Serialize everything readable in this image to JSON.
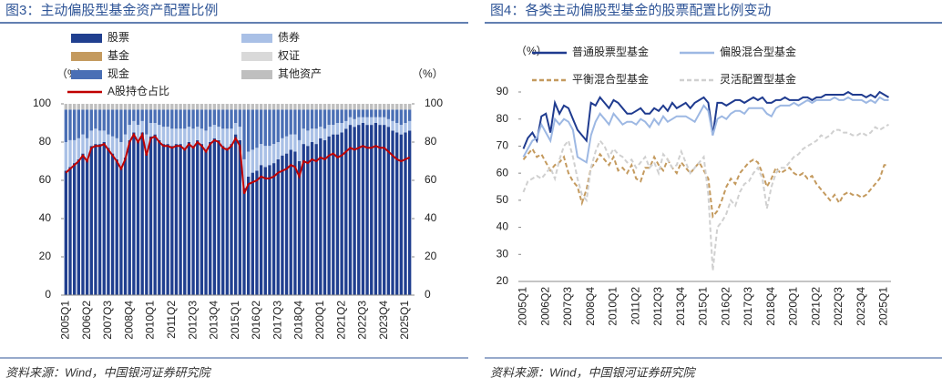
{
  "chart_data": [
    {
      "type": "bar",
      "stacked": true,
      "title": "图3：主动偏股型基金资产配置比例",
      "source": "资料来源：Wind，中国银河证券研究院",
      "y_unit": "（%）",
      "y2_unit": "（%）",
      "categories": [
        "2005Q1",
        null,
        null,
        null,
        null,
        "2006Q2",
        null,
        null,
        null,
        null,
        "2007Q3",
        null,
        null,
        null,
        null,
        "2008Q4",
        null,
        null,
        null,
        null,
        "2010Q1",
        null,
        null,
        null,
        null,
        "2011Q2",
        null,
        null,
        null,
        null,
        "2012Q3",
        null,
        null,
        null,
        null,
        "2013Q4",
        null,
        null,
        null,
        null,
        "2015Q1",
        null,
        null,
        null,
        null,
        "2016Q2",
        null,
        null,
        null,
        null,
        "2017Q3",
        null,
        null,
        null,
        null,
        "2018Q4",
        null,
        null,
        null,
        null,
        "2020Q1",
        null,
        null,
        null,
        null,
        "2021Q2",
        null,
        null,
        null,
        null,
        "2022Q3",
        null,
        null,
        null,
        null,
        "2023Q4",
        null,
        null,
        null,
        null,
        "2025Q1",
        null
      ],
      "ylim": [
        0,
        100
      ],
      "yticks": [
        0,
        20,
        40,
        60,
        80,
        100
      ],
      "y2lim": [
        0,
        100
      ],
      "y2ticks": [
        0,
        20,
        40,
        60,
        80,
        100
      ],
      "series": [
        {
          "name": "股票",
          "color": "#203f8f",
          "values": [
            65,
            67,
            69,
            71,
            74,
            71,
            78,
            79,
            79,
            80,
            77,
            74,
            71,
            67,
            72,
            81,
            85,
            81,
            85,
            74,
            83,
            84,
            81,
            79,
            79,
            78,
            79,
            79,
            77,
            80,
            78,
            81,
            79,
            76,
            80,
            82,
            81,
            78,
            77,
            79,
            84,
            81,
            56,
            62,
            64,
            65,
            68,
            67,
            68,
            69,
            71,
            73,
            74,
            76,
            75,
            70,
            79,
            78,
            80,
            79,
            82,
            81,
            83,
            84,
            84,
            85,
            87,
            89,
            88,
            89,
            90,
            89,
            89,
            90,
            89,
            89,
            88,
            86,
            85,
            84,
            85,
            86
          ]
        },
        {
          "name": "债券",
          "color": "#a9c0e6",
          "values": [
            15,
            14,
            12,
            11,
            10,
            11,
            8,
            8,
            7,
            6,
            7,
            9,
            11,
            13,
            12,
            8,
            6,
            8,
            6,
            10,
            7,
            6,
            8,
            9,
            9,
            9,
            8,
            8,
            10,
            8,
            9,
            7,
            8,
            10,
            8,
            7,
            7,
            9,
            10,
            8,
            6,
            7,
            15,
            13,
            12,
            12,
            11,
            11,
            10,
            10,
            9,
            9,
            9,
            8,
            9,
            11,
            8,
            8,
            7,
            8,
            6,
            6,
            6,
            5,
            6,
            5,
            4,
            4,
            4,
            4,
            3,
            4,
            4,
            3,
            4,
            4,
            4,
            5,
            5,
            5,
            5,
            5
          ]
        },
        {
          "name": "基金",
          "color": "#c49a5e",
          "values": [
            0,
            0,
            0,
            0,
            0,
            0,
            0,
            0,
            0,
            0,
            0,
            0,
            0,
            0,
            0,
            0,
            0,
            0,
            0,
            0,
            0,
            0,
            0,
            0,
            0,
            0,
            0,
            0,
            0,
            0,
            0,
            0,
            0,
            0,
            0,
            0,
            0,
            0,
            0,
            0,
            0,
            0,
            0,
            0,
            0,
            0,
            0,
            0,
            0,
            0,
            0,
            0,
            0,
            0,
            0,
            0,
            0,
            0,
            0,
            0,
            0,
            0,
            0,
            0,
            0,
            0,
            0,
            0,
            0,
            0,
            0,
            0,
            0,
            0,
            0,
            0,
            0,
            0,
            0,
            0,
            0,
            0
          ]
        },
        {
          "name": "权证",
          "color": "#d9d9d9",
          "values": [
            0,
            0,
            0,
            0,
            0,
            0,
            0,
            0,
            0,
            0,
            0,
            0,
            0,
            0,
            0,
            0,
            0,
            0,
            0,
            0,
            0,
            0,
            0,
            0,
            0,
            0,
            0,
            0,
            0,
            0,
            0,
            0,
            0,
            0,
            0,
            0,
            0,
            0,
            0,
            0,
            0,
            0,
            0,
            0,
            0,
            0,
            0,
            0,
            0,
            0,
            0,
            0,
            0,
            0,
            0,
            0,
            0,
            0,
            0,
            0,
            0,
            0,
            0,
            0,
            0,
            0,
            0,
            0,
            0,
            0,
            0,
            0,
            0,
            0,
            0,
            0,
            0,
            0,
            0,
            0,
            0,
            0
          ]
        },
        {
          "name": "现金",
          "color": "#4a6fb5",
          "values": [
            17,
            16,
            16,
            15,
            13,
            15,
            11,
            10,
            11,
            11,
            13,
            14,
            15,
            17,
            13,
            8,
            6,
            8,
            6,
            13,
            7,
            7,
            8,
            9,
            9,
            10,
            10,
            10,
            10,
            9,
            10,
            9,
            10,
            11,
            9,
            8,
            9,
            10,
            10,
            10,
            7,
            9,
            26,
            22,
            21,
            20,
            18,
            19,
            19,
            18,
            17,
            15,
            14,
            13,
            13,
            16,
            10,
            11,
            10,
            10,
            9,
            10,
            8,
            8,
            7,
            7,
            6,
            4,
            5,
            4,
            4,
            4,
            4,
            4,
            4,
            4,
            5,
            6,
            7,
            8,
            7,
            6
          ]
        },
        {
          "name": "其他资产",
          "color": "#bfbfbf",
          "values": [
            3,
            3,
            3,
            3,
            3,
            3,
            3,
            3,
            3,
            3,
            3,
            3,
            3,
            3,
            3,
            3,
            3,
            3,
            3,
            3,
            3,
            3,
            3,
            3,
            3,
            3,
            3,
            3,
            3,
            3,
            3,
            3,
            3,
            3,
            3,
            3,
            3,
            3,
            3,
            3,
            3,
            3,
            3,
            3,
            3,
            3,
            3,
            3,
            3,
            3,
            3,
            3,
            3,
            3,
            3,
            3,
            3,
            3,
            3,
            3,
            3,
            3,
            3,
            3,
            3,
            3,
            3,
            3,
            3,
            3,
            3,
            3,
            3,
            3,
            3,
            3,
            3,
            3,
            3,
            3,
            3,
            3
          ]
        },
        {
          "name": "A股持仓占比",
          "type": "line",
          "color": "#c00000",
          "values": [
            64,
            66,
            68,
            70,
            73,
            70,
            77,
            78,
            78,
            79,
            76,
            73,
            70,
            66,
            71,
            80,
            84,
            80,
            84,
            73,
            82,
            83,
            80,
            78,
            78,
            77,
            78,
            78,
            76,
            79,
            77,
            80,
            78,
            75,
            79,
            81,
            80,
            77,
            76,
            78,
            82,
            78,
            53,
            58,
            59,
            60,
            62,
            61,
            61,
            62,
            64,
            65,
            66,
            68,
            67,
            62,
            70,
            69,
            71,
            70,
            72,
            71,
            73,
            74,
            72,
            73,
            75,
            77,
            76,
            77,
            78,
            77,
            77,
            78,
            77,
            77,
            75,
            73,
            71,
            70,
            71,
            72
          ]
        }
      ]
    },
    {
      "type": "line",
      "title": "图4：各类主动偏股型基金的股票配置比例变动",
      "source": "资料来源：Wind，中国银河证券研究院",
      "y_unit": "（%）",
      "categories": [
        "2005Q1",
        null,
        null,
        null,
        null,
        "2006Q2",
        null,
        null,
        null,
        null,
        "2007Q3",
        null,
        null,
        null,
        null,
        "2008Q4",
        null,
        null,
        null,
        null,
        "2010Q1",
        null,
        null,
        null,
        null,
        "2011Q2",
        null,
        null,
        null,
        null,
        "2012Q3",
        null,
        null,
        null,
        null,
        "2013Q4",
        null,
        null,
        null,
        null,
        "2015Q1",
        null,
        null,
        null,
        null,
        "2016Q2",
        null,
        null,
        null,
        null,
        "2017Q3",
        null,
        null,
        null,
        null,
        "2018Q4",
        null,
        null,
        null,
        null,
        "2020Q1",
        null,
        null,
        null,
        null,
        "2021Q2",
        null,
        null,
        null,
        null,
        "2022Q3",
        null,
        null,
        null,
        null,
        "2023Q4",
        null,
        null,
        null,
        null,
        "2025Q1",
        null
      ],
      "ylim": [
        20,
        90
      ],
      "yticks": [
        20,
        30,
        40,
        50,
        60,
        70,
        80,
        90
      ],
      "series": [
        {
          "name": "普通股票型基金",
          "color": "#1f3b8f",
          "dash": false,
          "values": [
            69,
            73,
            75,
            72,
            81,
            82,
            75,
            86,
            82,
            85,
            84,
            80,
            76,
            74,
            72,
            86,
            85,
            88,
            86,
            84,
            87,
            86,
            84,
            82,
            82,
            83,
            84,
            82,
            82,
            84,
            83,
            85,
            83,
            86,
            84,
            85,
            86,
            84,
            86,
            87,
            88,
            86,
            74,
            86,
            86,
            85,
            86,
            87,
            87,
            86,
            87,
            88,
            87,
            88,
            86,
            86,
            87,
            87,
            88,
            87,
            87,
            87,
            88,
            88,
            87,
            88,
            88,
            89,
            89,
            89,
            89,
            89,
            90,
            89,
            89,
            89,
            88,
            89,
            88,
            90,
            89,
            88
          ]
        },
        {
          "name": "偏股混合型基金",
          "color": "#9db8e3",
          "dash": false,
          "values": [
            66,
            69,
            72,
            73,
            78,
            75,
            72,
            80,
            78,
            80,
            79,
            76,
            66,
            65,
            64,
            74,
            79,
            82,
            80,
            78,
            82,
            80,
            78,
            79,
            79,
            78,
            80,
            79,
            77,
            80,
            78,
            81,
            79,
            80,
            81,
            81,
            81,
            80,
            79,
            82,
            85,
            83,
            74,
            80,
            81,
            80,
            82,
            83,
            83,
            82,
            84,
            84,
            84,
            84,
            82,
            81,
            84,
            85,
            85,
            85,
            86,
            85,
            86,
            87,
            86,
            87,
            87,
            87,
            87,
            88,
            87,
            87,
            88,
            87,
            87,
            87,
            86,
            87,
            86,
            88,
            87,
            87
          ]
        },
        {
          "name": "平衡混合型基金",
          "color": "#c49a5e",
          "dash": true,
          "values": [
            65,
            67,
            69,
            66,
            67,
            64,
            61,
            63,
            64,
            66,
            60,
            57,
            55,
            49,
            54,
            62,
            64,
            67,
            65,
            63,
            66,
            61,
            62,
            60,
            63,
            58,
            57,
            62,
            62,
            66,
            63,
            61,
            65,
            62,
            60,
            64,
            62,
            60,
            62,
            64,
            61,
            58,
            44,
            46,
            50,
            55,
            58,
            56,
            60,
            62,
            64,
            65,
            64,
            60,
            55,
            58,
            62,
            60,
            61,
            62,
            60,
            59,
            60,
            58,
            59,
            56,
            54,
            52,
            50,
            52,
            49,
            52,
            53,
            52,
            52,
            51,
            52,
            54,
            56,
            58,
            63,
            63
          ]
        },
        {
          "name": "灵活配置型基金",
          "color": "#d0d0d0",
          "dash": true,
          "values": [
            53,
            57,
            58,
            59,
            58,
            60,
            62,
            58,
            65,
            70,
            72,
            66,
            58,
            52,
            50,
            62,
            68,
            72,
            70,
            66,
            69,
            67,
            66,
            64,
            65,
            62,
            64,
            66,
            62,
            64,
            60,
            67,
            65,
            62,
            63,
            68,
            64,
            60,
            62,
            64,
            66,
            52,
            24,
            40,
            42,
            45,
            50,
            48,
            53,
            56,
            57,
            60,
            62,
            58,
            47,
            55,
            60,
            62,
            62,
            64,
            66,
            67,
            69,
            70,
            71,
            72,
            74,
            73,
            74,
            76,
            76,
            75,
            75,
            74,
            74,
            75,
            74,
            75,
            77,
            76,
            77,
            78
          ]
        }
      ]
    }
  ]
}
